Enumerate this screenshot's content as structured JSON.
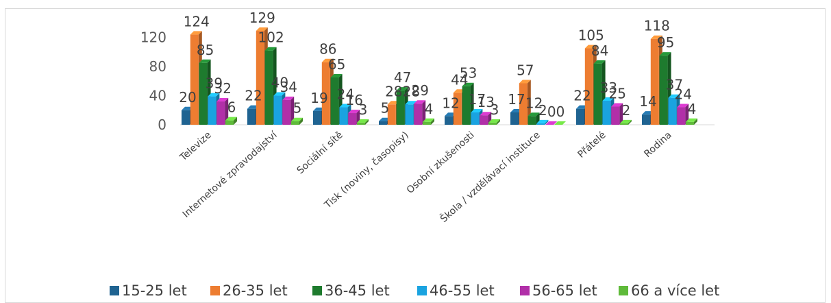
{
  "chart_data": {
    "type": "bar",
    "title": "",
    "xlabel": "",
    "ylabel": "",
    "ylim": [
      0,
      130
    ],
    "yticks": [
      0,
      40,
      80,
      120
    ],
    "grid": false,
    "legend_position": "bottom",
    "categories": [
      "Televize",
      "Internetové zpravodajství",
      "Sociální sítě",
      "Tisk (noviny, časopisy)",
      "Osobní zkušenosti",
      "Škola / vzdělávací instituce",
      "Přátelé",
      "Rodina"
    ],
    "series": [
      {
        "name": "15-25 let",
        "color": "#1f6391",
        "values": [
          20,
          22,
          19,
          5,
          12,
          17,
          22,
          14
        ]
      },
      {
        "name": "26-35 let",
        "color": "#ed7d31",
        "values": [
          124,
          129,
          86,
          28,
          44,
          57,
          105,
          118
        ]
      },
      {
        "name": "36-45 let",
        "color": "#1e7b2e",
        "values": [
          85,
          102,
          65,
          47,
          53,
          12,
          84,
          95
        ]
      },
      {
        "name": "46-55 let",
        "color": "#1aa3e0",
        "values": [
          39,
          40,
          24,
          28,
          17,
          2,
          33,
          37
        ]
      },
      {
        "name": "56-65 let",
        "color": "#b12fa8",
        "values": [
          32,
          34,
          16,
          29,
          13,
          0,
          25,
          24
        ]
      },
      {
        "name": "66 a více let",
        "color": "#5fba3a",
        "values": [
          6,
          5,
          3,
          4,
          3,
          0,
          2,
          4
        ]
      }
    ]
  }
}
